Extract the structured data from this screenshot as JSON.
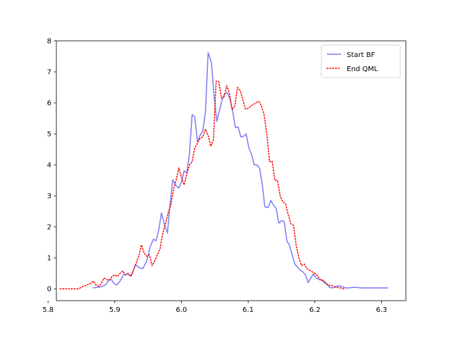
{
  "chart_data": {
    "type": "line",
    "title": "",
    "xlabel": "",
    "ylabel": "",
    "xlim": [
      5.8125,
      6.3365
    ],
    "ylim": [
      -0.382,
      8.0
    ],
    "xticks": [
      5.8,
      5.9,
      6.0,
      6.1,
      6.2,
      6.3
    ],
    "xtick_labels": [
      "5.8",
      "5.9",
      "6.0",
      "6.1",
      "6.2",
      "6.3"
    ],
    "yticks": [
      0,
      1,
      2,
      3,
      4,
      5,
      6,
      7,
      8
    ],
    "ytick_labels": [
      "0",
      "1",
      "2",
      "3",
      "4",
      "5",
      "6",
      "7",
      "8"
    ],
    "grid": false,
    "legend_position": "upper right",
    "series": [
      {
        "name": "Start BF",
        "color": "#7b7bf5",
        "style": "solid",
        "x": [
          5.867,
          5.876,
          5.882,
          5.887,
          5.891,
          5.895,
          5.899,
          5.903,
          5.908,
          5.913,
          5.919,
          5.925,
          5.931,
          5.937,
          5.942,
          5.948,
          5.953,
          5.958,
          5.962,
          5.966,
          5.97,
          5.975,
          5.979,
          5.983,
          5.987,
          5.991,
          5.996,
          6.0,
          6.004,
          6.008,
          6.012,
          6.016,
          6.02,
          6.024,
          6.028,
          6.032,
          6.036,
          6.04,
          6.045,
          6.049,
          6.053,
          6.057,
          6.061,
          6.065,
          6.069,
          6.073,
          6.077,
          6.081,
          6.085,
          6.089,
          6.093,
          6.097,
          6.101,
          6.105,
          6.109,
          6.113,
          6.117,
          6.121,
          6.125,
          6.13,
          6.134,
          6.138,
          6.142,
          6.146,
          6.15,
          6.154,
          6.158,
          6.162,
          6.166,
          6.17,
          6.174,
          6.178,
          6.182,
          6.186,
          6.19,
          6.194,
          6.198,
          6.202,
          6.206,
          6.21,
          6.214,
          6.218,
          6.222,
          6.226,
          6.23,
          6.234,
          6.24,
          6.246,
          6.252,
          6.258,
          6.264,
          6.27,
          6.276,
          6.282,
          6.288,
          6.294,
          6.3,
          6.31
        ],
        "y": [
          0.03,
          0.05,
          0.08,
          0.15,
          0.28,
          0.3,
          0.17,
          0.12,
          0.25,
          0.45,
          0.48,
          0.42,
          0.78,
          0.68,
          0.65,
          0.9,
          1.35,
          1.6,
          1.55,
          1.9,
          2.45,
          2.05,
          1.8,
          2.75,
          3.52,
          3.35,
          3.25,
          3.45,
          3.8,
          3.75,
          4.35,
          5.62,
          5.55,
          4.75,
          4.95,
          5.1,
          5.7,
          7.62,
          7.3,
          6.2,
          5.4,
          5.75,
          6.1,
          6.3,
          6.32,
          6.1,
          5.7,
          5.2,
          5.22,
          4.9,
          4.92,
          5.0,
          4.55,
          4.35,
          4.0,
          4.0,
          3.9,
          3.4,
          2.65,
          2.62,
          2.85,
          2.7,
          2.6,
          2.12,
          2.2,
          2.18,
          1.55,
          1.4,
          1.1,
          0.8,
          0.7,
          0.6,
          0.55,
          0.45,
          0.2,
          0.35,
          0.48,
          0.35,
          0.3,
          0.28,
          0.2,
          0.15,
          0.05,
          0.03,
          0.05,
          0.1,
          0.08,
          0.03,
          0.03,
          0.05,
          0.04,
          0.03,
          0.03,
          0.03,
          0.03,
          0.03,
          0.03,
          0.03
        ],
        "yerr": null
      },
      {
        "name": "End QML",
        "color": "#ff0000",
        "style": "dotted",
        "x": [
          5.818,
          5.828,
          5.838,
          5.846,
          5.852,
          5.858,
          5.864,
          5.868,
          5.872,
          5.876,
          5.88,
          5.884,
          5.888,
          5.892,
          5.896,
          5.9,
          5.904,
          5.908,
          5.912,
          5.916,
          5.92,
          5.924,
          5.928,
          5.932,
          5.936,
          5.94,
          5.944,
          5.948,
          5.952,
          5.956,
          5.96,
          5.964,
          5.968,
          5.972,
          5.976,
          5.98,
          5.984,
          5.988,
          5.992,
          5.996,
          6.0,
          6.004,
          6.008,
          6.012,
          6.016,
          6.02,
          6.024,
          6.028,
          6.032,
          6.036,
          6.04,
          6.044,
          6.048,
          6.052,
          6.056,
          6.06,
          6.064,
          6.068,
          6.072,
          6.076,
          6.08,
          6.084,
          6.088,
          6.092,
          6.096,
          6.1,
          6.104,
          6.108,
          6.112,
          6.116,
          6.12,
          6.124,
          6.128,
          6.132,
          6.136,
          6.14,
          6.144,
          6.148,
          6.152,
          6.156,
          6.16,
          6.164,
          6.168,
          6.172,
          6.176,
          6.18,
          6.184,
          6.188,
          6.192,
          6.196,
          6.2,
          6.204,
          6.208,
          6.212,
          6.216,
          6.22,
          6.226,
          6.232,
          6.238,
          6.244
        ],
        "y": [
          0.0,
          0.0,
          0.0,
          0.0,
          0.08,
          0.12,
          0.18,
          0.25,
          0.12,
          0.08,
          0.18,
          0.35,
          0.3,
          0.28,
          0.4,
          0.45,
          0.4,
          0.5,
          0.58,
          0.45,
          0.5,
          0.4,
          0.6,
          0.82,
          1.05,
          1.42,
          1.15,
          1.05,
          1.1,
          0.75,
          0.9,
          1.1,
          1.3,
          1.8,
          2.1,
          2.45,
          2.7,
          3.2,
          3.5,
          3.9,
          3.6,
          3.35,
          3.7,
          4.0,
          4.1,
          4.55,
          4.7,
          4.85,
          4.9,
          5.15,
          4.95,
          4.6,
          4.8,
          6.7,
          6.68,
          6.15,
          6.2,
          6.55,
          6.3,
          5.78,
          5.9,
          6.5,
          6.4,
          6.1,
          5.8,
          5.82,
          5.9,
          5.95,
          6.0,
          6.05,
          5.9,
          5.6,
          5.0,
          4.1,
          4.12,
          3.5,
          3.5,
          3.0,
          2.8,
          2.75,
          2.4,
          2.1,
          2.05,
          1.4,
          1.0,
          0.75,
          0.8,
          0.65,
          0.6,
          0.55,
          0.5,
          0.42,
          0.3,
          0.28,
          0.2,
          0.12,
          0.1,
          0.05,
          0.03,
          0.0
        ],
        "yerr": null
      }
    ]
  }
}
